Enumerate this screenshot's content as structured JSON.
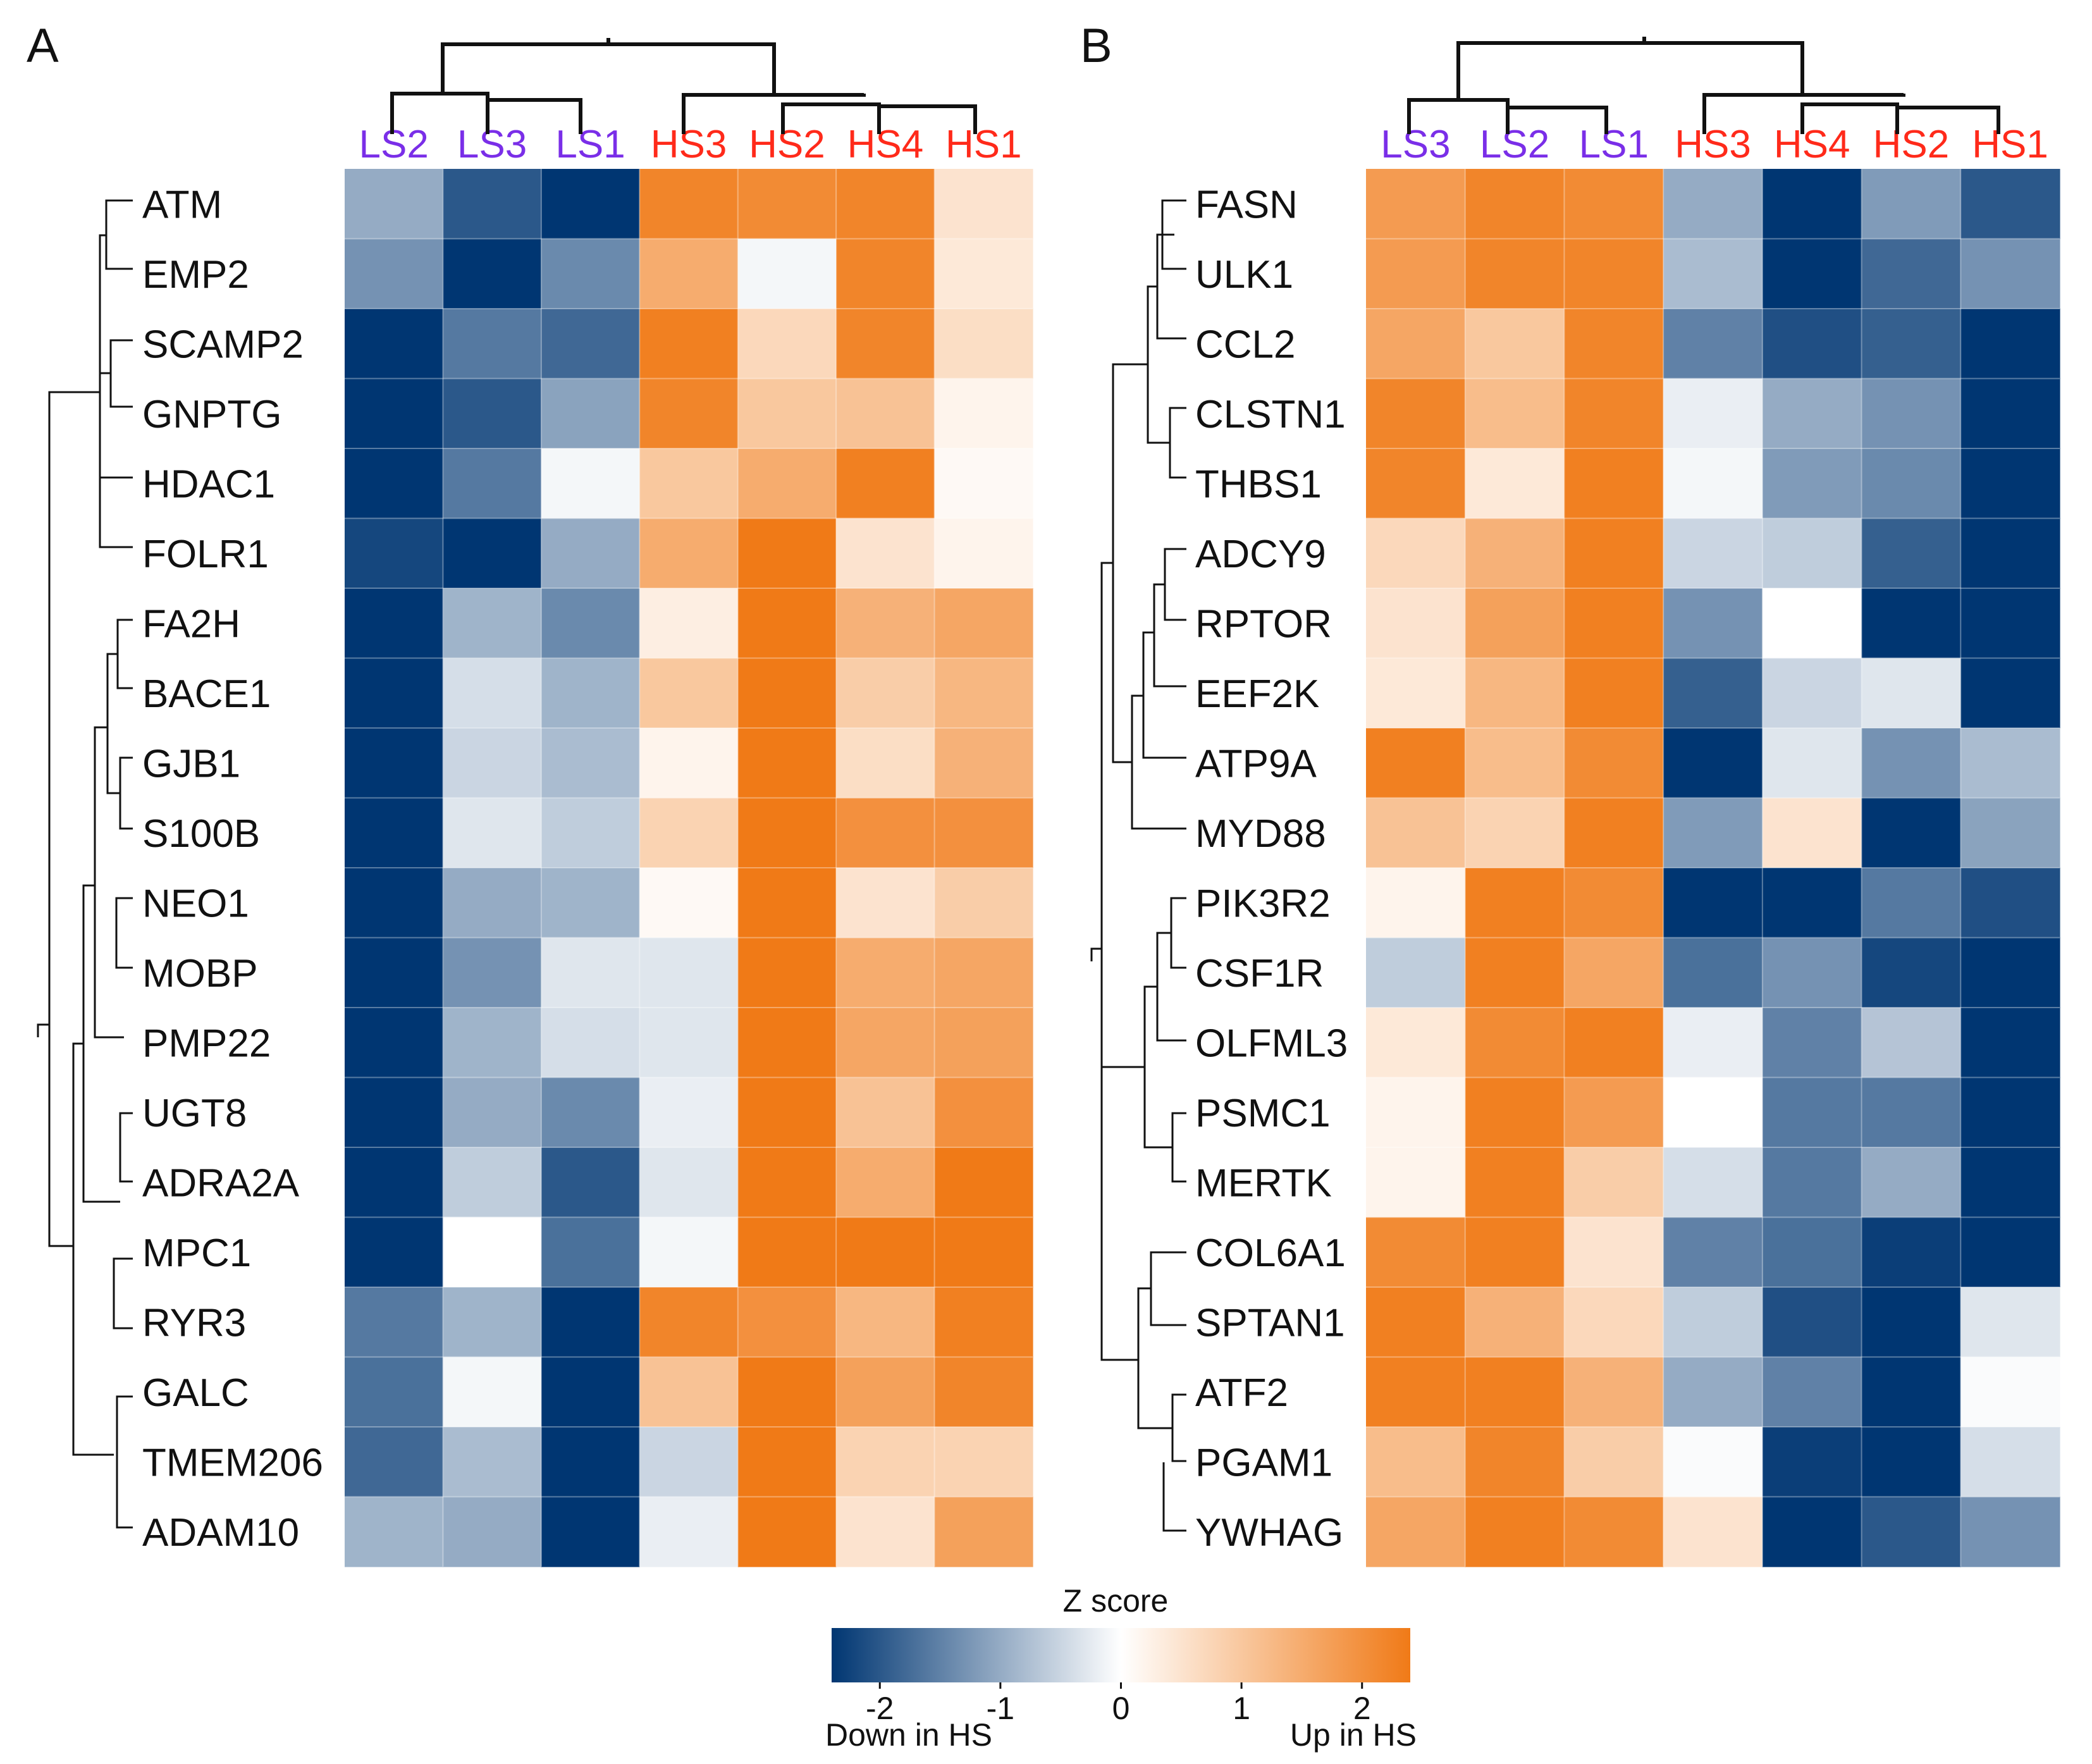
{
  "colors": {
    "low": "#003672",
    "mid": "#ffffff",
    "high": "#f07a17",
    "ls_label": "#7a2ee8",
    "hs_label": "#ff2a1a",
    "dendrogram": "#111111"
  },
  "chart_data": [
    {
      "type": "heatmap",
      "panel": "A",
      "columns": [
        "LS2",
        "LS3",
        "LS1",
        "HS3",
        "HS2",
        "HS4",
        "HS1"
      ],
      "column_groups": [
        "LS",
        "LS",
        "LS",
        "HS",
        "HS",
        "HS",
        "HS"
      ],
      "rows": [
        "ATM",
        "EMP2",
        "SCAMP2",
        "GNPTG",
        "HDAC1",
        "FOLR1",
        "FA2H",
        "BACE1",
        "GJB1",
        "S100B",
        "NEO1",
        "MOBP",
        "PMP22",
        "UGT8",
        "ADRA2A",
        "MPC1",
        "RYR3",
        "GALC",
        "TMEM206",
        "ADAM10"
      ],
      "values": [
        [
          -1.0,
          -2.0,
          -2.4,
          2.2,
          2.1,
          2.2,
          0.5
        ],
        [
          -1.3,
          -2.4,
          -1.4,
          1.5,
          -0.1,
          2.2,
          0.4
        ],
        [
          -2.4,
          -1.6,
          -1.8,
          2.3,
          0.7,
          2.2,
          0.6
        ],
        [
          -2.4,
          -2.0,
          -1.1,
          2.2,
          1.0,
          1.1,
          0.2
        ],
        [
          -2.4,
          -1.6,
          -0.1,
          1.0,
          1.5,
          2.3,
          0.1
        ],
        [
          -2.2,
          -2.4,
          -1.0,
          1.5,
          2.4,
          0.5,
          0.2
        ],
        [
          -2.4,
          -0.9,
          -1.4,
          0.3,
          2.4,
          1.4,
          1.6
        ],
        [
          -2.4,
          -0.4,
          -0.9,
          1.0,
          2.4,
          0.9,
          1.3
        ],
        [
          -2.4,
          -0.5,
          -0.8,
          0.2,
          2.4,
          0.6,
          1.4
        ],
        [
          -2.4,
          -0.3,
          -0.6,
          0.8,
          2.4,
          2.0,
          2.0
        ],
        [
          -2.4,
          -1.0,
          -0.9,
          0.1,
          2.4,
          0.5,
          0.9
        ],
        [
          -2.4,
          -1.3,
          -0.3,
          -0.3,
          2.4,
          1.5,
          1.6
        ],
        [
          -2.4,
          -0.9,
          -0.4,
          -0.3,
          2.4,
          1.6,
          1.7
        ],
        [
          -2.4,
          -1.0,
          -1.4,
          -0.2,
          2.4,
          1.1,
          2.0
        ],
        [
          -2.4,
          -0.6,
          -2.0,
          -0.3,
          2.4,
          1.5,
          2.4
        ],
        [
          -2.4,
          0.0,
          -1.7,
          -0.1,
          2.4,
          2.4,
          2.4
        ],
        [
          -1.6,
          -0.9,
          -2.4,
          2.2,
          2.0,
          1.3,
          2.3
        ],
        [
          -1.7,
          -0.1,
          -2.4,
          1.1,
          2.4,
          1.7,
          2.2
        ],
        [
          -1.8,
          -0.8,
          -2.4,
          -0.5,
          2.4,
          0.8,
          0.8
        ],
        [
          -0.9,
          -1.0,
          -2.4,
          -0.2,
          2.4,
          0.5,
          1.7
        ]
      ],
      "color_range": [
        -2.4,
        2.4
      ]
    },
    {
      "type": "heatmap",
      "panel": "B",
      "columns": [
        "LS3",
        "LS2",
        "LS1",
        "HS3",
        "HS4",
        "HS2",
        "HS1"
      ],
      "column_groups": [
        "LS",
        "LS",
        "LS",
        "HS",
        "HS",
        "HS",
        "HS"
      ],
      "rows": [
        "FASN",
        "ULK1",
        "CCL2",
        "CLSTN1",
        "THBS1",
        "ADCY9",
        "RPTOR",
        "EEF2K",
        "ATP9A",
        "MYD88",
        "PIK3R2",
        "CSF1R",
        "OLFML3",
        "PSMC1",
        "MERTK",
        "COL6A1",
        "SPTAN1",
        "ATF2",
        "PGAM1",
        "YWHAG"
      ],
      "values": [
        [
          1.8,
          2.2,
          2.1,
          -1.0,
          -2.4,
          -1.2,
          -2.0
        ],
        [
          1.8,
          2.2,
          2.2,
          -0.8,
          -2.4,
          -1.8,
          -1.3
        ],
        [
          1.6,
          1.0,
          2.2,
          -1.5,
          -2.1,
          -1.9,
          -2.4
        ],
        [
          2.2,
          1.2,
          2.2,
          -0.2,
          -1.0,
          -1.3,
          -2.4
        ],
        [
          2.2,
          0.4,
          2.3,
          -0.1,
          -1.2,
          -1.4,
          -2.4
        ],
        [
          0.7,
          1.4,
          2.3,
          -0.5,
          -0.6,
          -1.9,
          -2.4
        ],
        [
          0.5,
          1.7,
          2.3,
          -1.3,
          0.0,
          -2.4,
          -2.4
        ],
        [
          0.4,
          1.3,
          2.3,
          -1.9,
          -0.5,
          -0.3,
          -2.4
        ],
        [
          2.3,
          1.2,
          2.1,
          -2.4,
          -0.3,
          -1.3,
          -0.8
        ],
        [
          1.1,
          0.8,
          2.3,
          -1.2,
          0.5,
          -2.4,
          -1.1
        ],
        [
          0.2,
          2.3,
          2.1,
          -2.4,
          -2.4,
          -1.6,
          -2.1
        ],
        [
          -0.6,
          2.3,
          1.6,
          -1.7,
          -1.3,
          -2.2,
          -2.4
        ],
        [
          0.4,
          2.1,
          2.3,
          -0.2,
          -1.5,
          -0.7,
          -2.4
        ],
        [
          0.2,
          2.3,
          1.8,
          0.0,
          -1.6,
          -1.6,
          -2.4
        ],
        [
          0.2,
          2.3,
          0.9,
          -0.4,
          -1.6,
          -1.0,
          -2.4
        ],
        [
          2.1,
          2.3,
          0.5,
          -1.5,
          -1.7,
          -2.3,
          -2.4
        ],
        [
          2.3,
          1.4,
          0.7,
          -0.6,
          -2.1,
          -2.4,
          -0.3
        ],
        [
          2.3,
          2.3,
          1.4,
          -1.0,
          -1.5,
          -2.4,
          -0.05
        ],
        [
          1.2,
          2.2,
          0.9,
          -0.05,
          -2.3,
          -2.4,
          -0.4
        ],
        [
          1.6,
          2.3,
          2.1,
          0.5,
          -2.4,
          -2.0,
          -1.3
        ]
      ],
      "color_range": [
        -2.4,
        2.4
      ]
    }
  ],
  "colorbar": {
    "title": "Z score",
    "ticks": [
      -2,
      -1,
      0,
      1,
      2
    ],
    "tick_labels": [
      "-2",
      "-1",
      "0",
      "1",
      "2"
    ],
    "range": [
      -2.4,
      2.4
    ],
    "left_caption": "Down in HS",
    "right_caption": "Up in HS"
  }
}
